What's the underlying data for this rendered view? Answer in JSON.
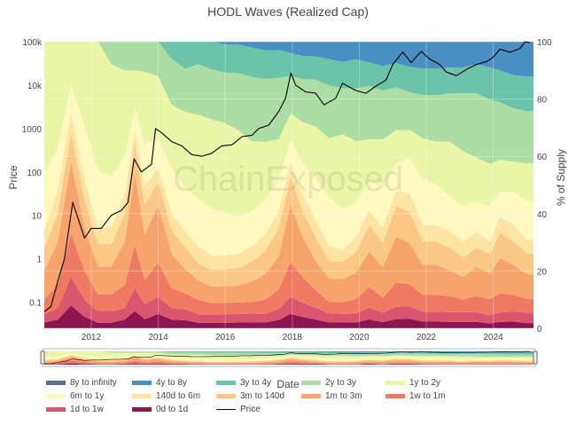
{
  "chart_data": {
    "type": "area",
    "title": "HODL Waves (Realized Cap)",
    "xlabel": "Date",
    "ylabel_left": "Price",
    "ylabel_right": "% of Supply",
    "watermark": "ChainExposed",
    "x_range": [
      2010.6,
      2025.2
    ],
    "x_ticks": [
      "2012",
      "2014",
      "2016",
      "2018",
      "2020",
      "2022",
      "2024"
    ],
    "x_tick_values": [
      2012,
      2014,
      2016,
      2018,
      2020,
      2022,
      2024
    ],
    "y_left_scale": "log",
    "y_left_range": [
      0.025,
      100000
    ],
    "y_left_ticks": [
      "0.1",
      "1",
      "10",
      "100",
      "1000",
      "10k",
      "100k"
    ],
    "y_left_tick_values": [
      0.1,
      1,
      10,
      100,
      1000,
      10000,
      100000
    ],
    "y_right_range": [
      0,
      100
    ],
    "y_right_ticks": [
      "0",
      "20",
      "40",
      "60",
      "80",
      "100"
    ],
    "y_right_tick_values": [
      0,
      20,
      40,
      60,
      80,
      100
    ],
    "x": [
      2010.6,
      2011.0,
      2011.4,
      2011.8,
      2012.2,
      2012.6,
      2013.0,
      2013.3,
      2013.6,
      2014.0,
      2014.4,
      2014.8,
      2015.2,
      2015.6,
      2016.0,
      2016.4,
      2016.8,
      2017.2,
      2017.6,
      2017.95,
      2018.3,
      2018.7,
      2019.1,
      2019.5,
      2019.9,
      2020.3,
      2020.7,
      2021.1,
      2021.5,
      2021.9,
      2022.3,
      2022.7,
      2023.1,
      2023.5,
      2023.9,
      2024.2,
      2024.6,
      2025.0,
      2025.2
    ],
    "series": [
      {
        "name": "0d to 1d",
        "color": "#8e1650",
        "values": [
          2,
          3,
          8,
          4,
          2,
          2,
          3,
          6,
          3,
          5,
          3,
          3,
          2,
          2,
          2,
          2,
          2,
          2,
          3,
          5,
          4,
          3,
          2,
          2,
          2,
          3,
          2,
          3,
          3,
          2,
          2,
          2,
          2,
          2,
          1.5,
          2,
          2,
          1.5,
          1.5
        ]
      },
      {
        "name": "1d to 1w",
        "color": "#d9566e",
        "values": [
          3,
          4,
          10,
          6,
          4,
          4,
          4,
          8,
          5,
          6,
          4,
          4,
          3,
          3,
          3,
          3,
          3,
          3,
          4,
          6,
          5,
          4,
          3,
          3,
          3,
          4,
          3,
          4,
          4,
          3,
          3,
          3,
          3,
          3,
          2.5,
          3,
          3,
          3,
          3
        ]
      },
      {
        "name": "1w to 1m",
        "color": "#ef7a62",
        "values": [
          5,
          8,
          15,
          10,
          6,
          6,
          8,
          15,
          8,
          12,
          7,
          6,
          5,
          4,
          4,
          4,
          4,
          5,
          7,
          12,
          9,
          6,
          4,
          4,
          5,
          7,
          5,
          8,
          7,
          5,
          5,
          5,
          4,
          5,
          5,
          6,
          5,
          4,
          4
        ]
      },
      {
        "name": "1m to 3m",
        "color": "#f6a36c",
        "values": [
          10,
          15,
          25,
          15,
          10,
          10,
          15,
          25,
          15,
          20,
          12,
          9,
          7,
          6,
          6,
          6,
          7,
          9,
          12,
          20,
          14,
          10,
          8,
          8,
          9,
          12,
          10,
          15,
          13,
          9,
          9,
          8,
          7,
          9,
          8,
          11,
          9,
          7,
          7
        ]
      },
      {
        "name": "3m to 140d",
        "color": "#fbc787",
        "values": [
          8,
          10,
          10,
          10,
          8,
          8,
          10,
          10,
          10,
          8,
          8,
          8,
          6,
          6,
          6,
          6,
          7,
          8,
          10,
          10,
          9,
          8,
          6,
          6,
          7,
          9,
          8,
          10,
          10,
          7,
          7,
          7,
          6,
          6,
          6,
          8,
          7,
          6,
          6
        ]
      },
      {
        "name": "140d to 6m",
        "color": "#fde4a3",
        "values": [
          6,
          8,
          7,
          7,
          6,
          6,
          6,
          5,
          6,
          5,
          6,
          6,
          6,
          5,
          5,
          5,
          5,
          6,
          6,
          5,
          6,
          6,
          5,
          4,
          5,
          5,
          5,
          5,
          6,
          5,
          5,
          5,
          5,
          5,
          4,
          5,
          5,
          4,
          4
        ]
      },
      {
        "name": "6m to 1y",
        "color": "#fff9bf",
        "values": [
          20,
          15,
          10,
          18,
          20,
          18,
          14,
          8,
          14,
          10,
          16,
          16,
          17,
          17,
          15,
          13,
          12,
          12,
          11,
          8,
          11,
          14,
          17,
          14,
          12,
          10,
          13,
          9,
          11,
          14,
          12,
          11,
          11,
          9,
          11,
          8,
          10,
          11,
          11
        ]
      },
      {
        "name": "1y to 2y",
        "color": "#e9f6a7",
        "values": [
          46,
          37,
          15,
          30,
          46,
          40,
          30,
          13,
          24,
          22,
          22,
          28,
          30,
          32,
          32,
          30,
          24,
          20,
          15,
          9,
          14,
          18,
          20,
          26,
          21,
          14,
          16,
          11,
          9,
          12,
          13,
          17,
          17,
          14,
          13,
          10,
          9,
          11,
          11
        ]
      },
      {
        "name": "2y to 3y",
        "color": "#abdda4",
        "values": [
          0,
          0,
          0,
          0,
          0,
          8,
          10,
          10,
          10,
          12,
          16,
          16,
          18,
          18,
          18,
          20,
          22,
          22,
          22,
          13,
          15,
          16,
          18,
          16,
          18,
          18,
          16,
          14,
          12,
          13,
          14,
          15,
          18,
          20,
          20,
          18,
          16,
          15,
          15
        ]
      },
      {
        "name": "3y to 4y",
        "color": "#6bc3aa",
        "values": [
          0,
          0,
          0,
          0,
          0,
          0,
          0,
          0,
          0,
          0,
          6,
          10,
          8,
          10,
          10,
          10,
          10,
          10,
          10,
          8,
          8,
          8,
          9,
          9,
          10,
          8,
          8,
          8,
          8,
          8,
          8,
          8,
          8,
          9,
          10,
          10,
          10,
          10,
          10
        ]
      },
      {
        "name": "4y to 8y",
        "color": "#4a8fc4",
        "values": [
          0,
          0,
          0,
          0,
          0,
          0,
          0,
          0,
          0,
          0,
          0,
          0,
          0,
          0,
          1,
          1,
          2,
          3,
          3,
          4,
          5,
          5,
          6,
          7,
          6,
          7,
          8,
          7,
          8,
          8,
          8,
          8,
          8,
          7,
          8,
          9,
          10,
          10,
          10
        ]
      },
      {
        "name": "8y to infinity",
        "color": "#5c6d92",
        "values": [
          0,
          0,
          0,
          0,
          0,
          0,
          0,
          0,
          0,
          0,
          0,
          0,
          0,
          0,
          0,
          0,
          0,
          0,
          0,
          0,
          0,
          0,
          0,
          0,
          0,
          0,
          0,
          0,
          0,
          0,
          0,
          0,
          0,
          0,
          0,
          0,
          0,
          0,
          0
        ]
      }
    ],
    "price_series": {
      "name": "Price",
      "color": "#000000",
      "x": [
        2010.6,
        2010.8,
        2011.0,
        2011.2,
        2011.45,
        2011.8,
        2012.0,
        2012.3,
        2012.6,
        2012.9,
        2013.1,
        2013.28,
        2013.5,
        2013.8,
        2013.92,
        2014.1,
        2014.4,
        2014.7,
        2015.0,
        2015.3,
        2015.6,
        2015.9,
        2016.2,
        2016.5,
        2016.8,
        2017.0,
        2017.3,
        2017.6,
        2017.8,
        2017.96,
        2018.1,
        2018.4,
        2018.7,
        2018.95,
        2019.3,
        2019.5,
        2019.9,
        2020.2,
        2020.5,
        2020.8,
        2021.0,
        2021.3,
        2021.55,
        2021.85,
        2022.1,
        2022.4,
        2022.6,
        2022.9,
        2023.2,
        2023.5,
        2023.8,
        2024.0,
        2024.2,
        2024.5,
        2024.8,
        2024.95,
        2025.1
      ],
      "y": [
        0.06,
        0.08,
        0.3,
        1,
        20,
        3,
        5,
        5,
        10,
        13,
        20,
        200,
        100,
        150,
        1000,
        800,
        500,
        400,
        250,
        230,
        270,
        400,
        420,
        650,
        700,
        1000,
        1200,
        2500,
        5000,
        19000,
        10000,
        7000,
        6500,
        3500,
        5000,
        11000,
        7500,
        6500,
        9500,
        13000,
        30000,
        58000,
        33000,
        60000,
        40000,
        30000,
        20000,
        16500,
        23000,
        30000,
        35000,
        44000,
        67000,
        57000,
        70000,
        100000,
        95000
      ]
    }
  }
}
